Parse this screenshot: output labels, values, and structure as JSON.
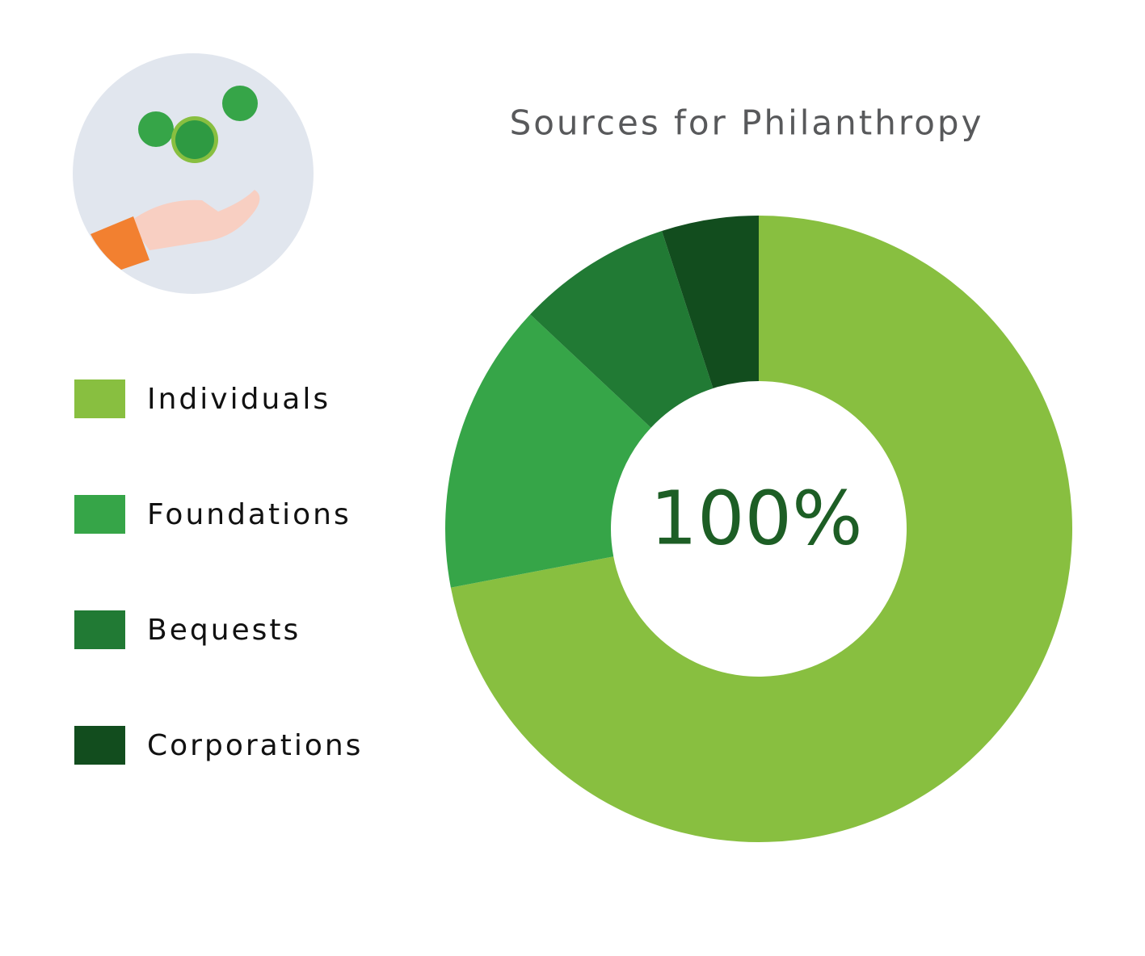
{
  "chart_data": {
    "type": "donut",
    "title": "Sources for Philanthropy",
    "center_label": "100%",
    "categories": [
      "Individuals",
      "Foundations",
      "Bequests",
      "Corporations"
    ],
    "values": [
      72,
      15,
      8,
      5
    ],
    "colors": [
      "#88bf40",
      "#36a548",
      "#217a34",
      "#124d1e"
    ]
  }
}
